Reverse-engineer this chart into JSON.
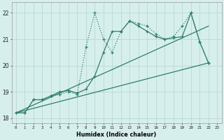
{
  "xlabel": "Humidex (Indice chaleur)",
  "ylabel": "",
  "background_color": "#d7efec",
  "grid_color": "#b8d8d4",
  "line_color": "#2e7d6e",
  "xlim": [
    -0.5,
    23.5
  ],
  "ylim": [
    17.8,
    22.4
  ],
  "xticks": [
    0,
    1,
    2,
    3,
    4,
    5,
    6,
    7,
    8,
    9,
    10,
    11,
    12,
    13,
    14,
    15,
    16,
    17,
    18,
    19,
    20,
    21,
    22,
    23
  ],
  "yticks": [
    18,
    19,
    20,
    21,
    22
  ],
  "series": [
    {
      "x": [
        0,
        1,
        2,
        3,
        4,
        5,
        6,
        7,
        8,
        9,
        10,
        11,
        12,
        13,
        14,
        15,
        16,
        17,
        18,
        19,
        20,
        21,
        22
      ],
      "y": [
        18.2,
        18.2,
        18.7,
        18.7,
        18.85,
        18.9,
        19.0,
        18.9,
        20.7,
        22.0,
        21.0,
        20.5,
        21.3,
        21.7,
        21.6,
        21.5,
        21.2,
        21.0,
        21.1,
        21.5,
        22.0,
        20.9,
        20.1
      ],
      "style": "dotted",
      "marker": "+"
    },
    {
      "x": [
        0,
        1,
        2,
        3,
        4,
        5,
        6,
        7,
        8,
        9,
        10,
        11,
        12,
        13,
        14,
        15,
        16,
        17,
        18,
        19,
        20,
        21,
        22
      ],
      "y": [
        18.2,
        18.2,
        18.7,
        18.7,
        18.85,
        19.0,
        19.05,
        18.95,
        19.1,
        19.6,
        20.5,
        21.3,
        21.3,
        21.7,
        21.5,
        21.3,
        21.1,
        21.0,
        21.05,
        21.1,
        22.0,
        20.9,
        20.1
      ],
      "style": "solid",
      "marker": "+"
    },
    {
      "x": [
        0,
        22
      ],
      "y": [
        18.2,
        21.5
      ],
      "style": "solid",
      "marker": null
    },
    {
      "x": [
        0,
        22
      ],
      "y": [
        18.2,
        20.1
      ],
      "style": "solid",
      "marker": null
    }
  ]
}
